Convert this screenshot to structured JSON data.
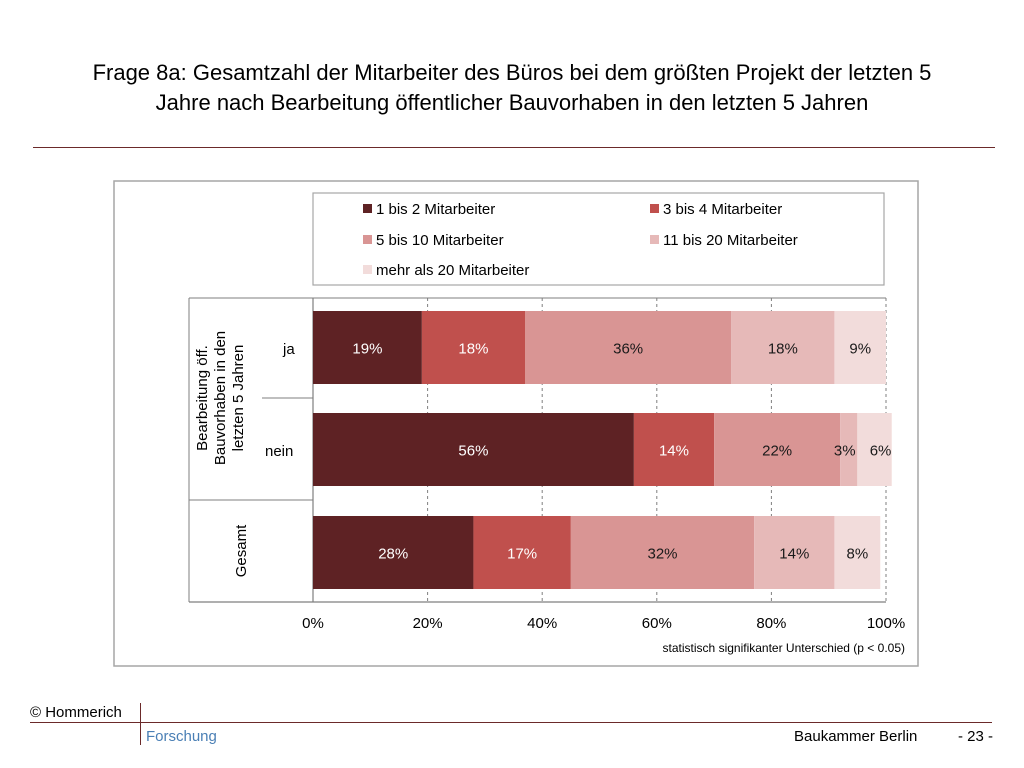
{
  "title_lines": [
    "Frage 8a: Gesamtzahl der Mitarbeiter des Büros bei dem größten Projekt der letzten 5",
    "Jahre nach Bearbeitung öffentlicher Bauvorhaben in den letzten 5 Jahren"
  ],
  "colors": [
    "#5e2224",
    "#c0504d",
    "#d99594",
    "#e6b9b8",
    "#f2dcdb"
  ],
  "chart_data": {
    "type": "bar",
    "orientation": "horizontal",
    "stacked": true,
    "categories": [
      "ja",
      "nein",
      "Gesamt"
    ],
    "group_label_lines": [
      "Bearbeitung öff.",
      "Bauvorhaben in den",
      "letzten 5 Jahren"
    ],
    "total_label": "Gesamt",
    "series": [
      {
        "name": "1 bis 2 Mitarbeiter",
        "values": [
          19,
          56,
          28
        ]
      },
      {
        "name": "3 bis 4 Mitarbeiter",
        "values": [
          18,
          14,
          17
        ]
      },
      {
        "name": "5 bis 10 Mitarbeiter",
        "values": [
          36,
          22,
          32
        ]
      },
      {
        "name": "11 bis 20 Mitarbeiter",
        "values": [
          18,
          3,
          14
        ]
      },
      {
        "name": "mehr als 20 Mitarbeiter",
        "values": [
          9,
          6,
          8
        ]
      }
    ],
    "value_labels": [
      [
        "19%",
        "18%",
        "36%",
        "18%",
        "9%"
      ],
      [
        "56%",
        "14%",
        "22%",
        "3%",
        "6%"
      ],
      [
        "28%",
        "17%",
        "32%",
        "14%",
        "8%"
      ]
    ],
    "xlim": [
      0,
      100
    ],
    "xticks": [
      "0%",
      "20%",
      "40%",
      "60%",
      "80%",
      "100%"
    ],
    "grid": true,
    "legend": "top",
    "note": "statistisch  signifikanter Unterschied   (p < 0.05)"
  },
  "footer": {
    "copyright": "© Hommerich",
    "brand": "Forschung",
    "org": "Baukammer Berlin",
    "page": "- 23 -"
  }
}
